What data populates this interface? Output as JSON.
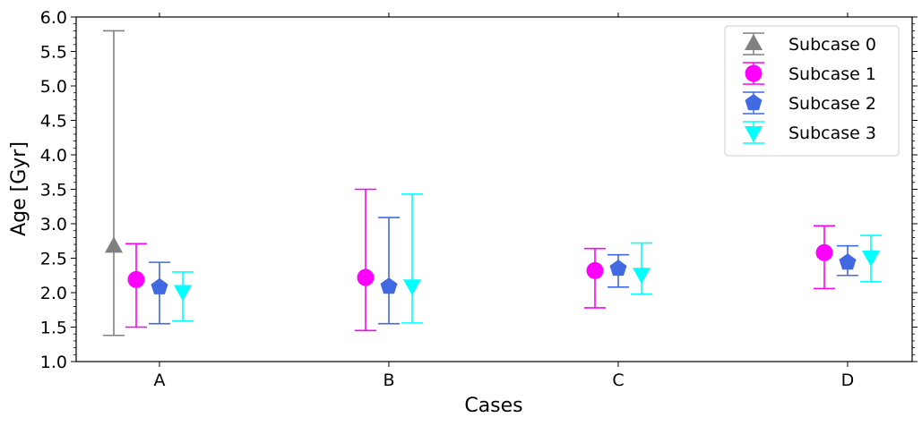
{
  "chart_data": {
    "type": "errorbar",
    "xlabel": "Cases",
    "ylabel": "Age [Gyr]",
    "categories": [
      "A",
      "B",
      "C",
      "D"
    ],
    "ylim": [
      1.0,
      6.0
    ],
    "yticks": [
      "1.0",
      "1.5",
      "2.0",
      "2.5",
      "3.0",
      "3.5",
      "4.0",
      "4.5",
      "5.0",
      "5.5",
      "6.0"
    ],
    "minor_ticks": true,
    "legend_position": "top-right",
    "series": [
      {
        "name": "Subcase 0",
        "color": "#808080",
        "marker": "triangle-up",
        "points": [
          {
            "category": "A",
            "value": 2.67,
            "low": 1.38,
            "high": 5.8
          }
        ]
      },
      {
        "name": "Subcase 1",
        "color": "#ff00ff",
        "marker": "circle",
        "points": [
          {
            "category": "A",
            "value": 2.19,
            "low": 1.5,
            "high": 2.71
          },
          {
            "category": "B",
            "value": 2.22,
            "low": 1.45,
            "high": 3.5
          },
          {
            "category": "C",
            "value": 2.32,
            "low": 1.78,
            "high": 2.64
          },
          {
            "category": "D",
            "value": 2.58,
            "low": 2.06,
            "high": 2.97
          }
        ]
      },
      {
        "name": "Subcase 2",
        "color": "#4169e1",
        "marker": "pentagon",
        "points": [
          {
            "category": "A",
            "value": 2.08,
            "low": 1.55,
            "high": 2.44
          },
          {
            "category": "B",
            "value": 2.09,
            "low": 1.55,
            "high": 3.09
          },
          {
            "category": "C",
            "value": 2.35,
            "low": 2.08,
            "high": 2.55
          },
          {
            "category": "D",
            "value": 2.44,
            "low": 2.25,
            "high": 2.68
          }
        ]
      },
      {
        "name": "Subcase 3",
        "color": "#00ffff",
        "marker": "triangle-down",
        "points": [
          {
            "category": "A",
            "value": 2.02,
            "low": 1.59,
            "high": 2.3
          },
          {
            "category": "B",
            "value": 2.1,
            "low": 1.56,
            "high": 3.43
          },
          {
            "category": "C",
            "value": 2.27,
            "low": 1.98,
            "high": 2.72
          },
          {
            "category": "D",
            "value": 2.52,
            "low": 2.16,
            "high": 2.83
          }
        ]
      }
    ]
  }
}
